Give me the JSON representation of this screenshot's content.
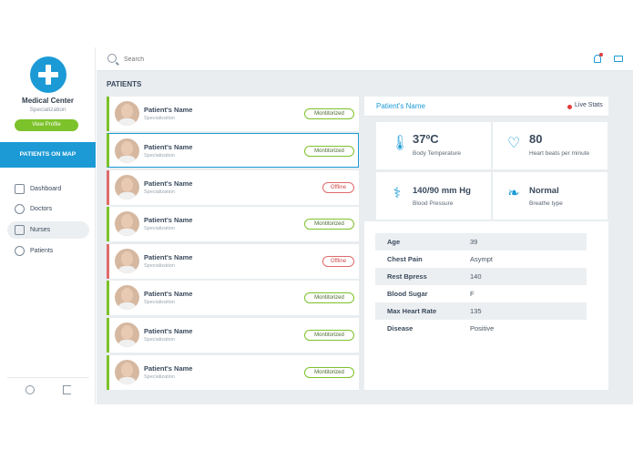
{
  "sidebar": {
    "center_name": "Medical Center",
    "center_spec": "Specialization",
    "view_profile": "View Profile",
    "map_button": "PATIENTS ON MAP",
    "nav": [
      {
        "label": "Dashboard",
        "icon": "dashboard-icon"
      },
      {
        "label": "Doctors",
        "icon": "doctor-icon"
      },
      {
        "label": "Nurses",
        "icon": "nurse-icon"
      },
      {
        "label": "Patients",
        "icon": "patient-icon"
      }
    ],
    "active_nav": "Nurses"
  },
  "topbar": {
    "search_placeholder": "Search",
    "notification_color": "#e03c3c",
    "accent": "#1c9ad6"
  },
  "patients": {
    "title": "PATIENTS",
    "items": [
      {
        "name": "Patient's Name",
        "spec": "Specialization",
        "status": "Montitorized"
      },
      {
        "name": "Patient's Name",
        "spec": "Specialization",
        "status": "Montitorized"
      },
      {
        "name": "Patient's Name",
        "spec": "Specialization",
        "status": "Offline"
      },
      {
        "name": "Patient's Name",
        "spec": "Specialization",
        "status": "Montitorized"
      },
      {
        "name": "Patient's Name",
        "spec": "Specialization",
        "status": "Offline"
      },
      {
        "name": "Patient's Name",
        "spec": "Specialization",
        "status": "Montitorized"
      },
      {
        "name": "Patient's Name",
        "spec": "Specialization",
        "status": "Montitorized"
      },
      {
        "name": "Patient's Name",
        "spec": "Specialization",
        "status": "Montitorized"
      }
    ]
  },
  "detail": {
    "name": "Patient's Name",
    "live_label": "Live Stats",
    "stats": [
      {
        "value": "37ºC",
        "label": "Body Temperature",
        "icon": "thermometer-icon"
      },
      {
        "value": "80",
        "label": "Heart beats per minute",
        "icon": "heart-icon"
      },
      {
        "value": "140/90 mm Hg",
        "label": "Blood Pressure",
        "icon": "blood-pressure-icon"
      },
      {
        "value": "Normal",
        "label": "Breathe type",
        "icon": "lungs-icon"
      }
    ],
    "table": [
      {
        "key": "Age",
        "value": "39"
      },
      {
        "key": "Chest Pain",
        "value": "Asympt"
      },
      {
        "key": "Rest Bpress",
        "value": "140"
      },
      {
        "key": "Blood Sugar",
        "value": "F"
      },
      {
        "key": "Max Heart Rate",
        "value": "135"
      },
      {
        "key": "Disease",
        "value": "Positive"
      }
    ]
  }
}
